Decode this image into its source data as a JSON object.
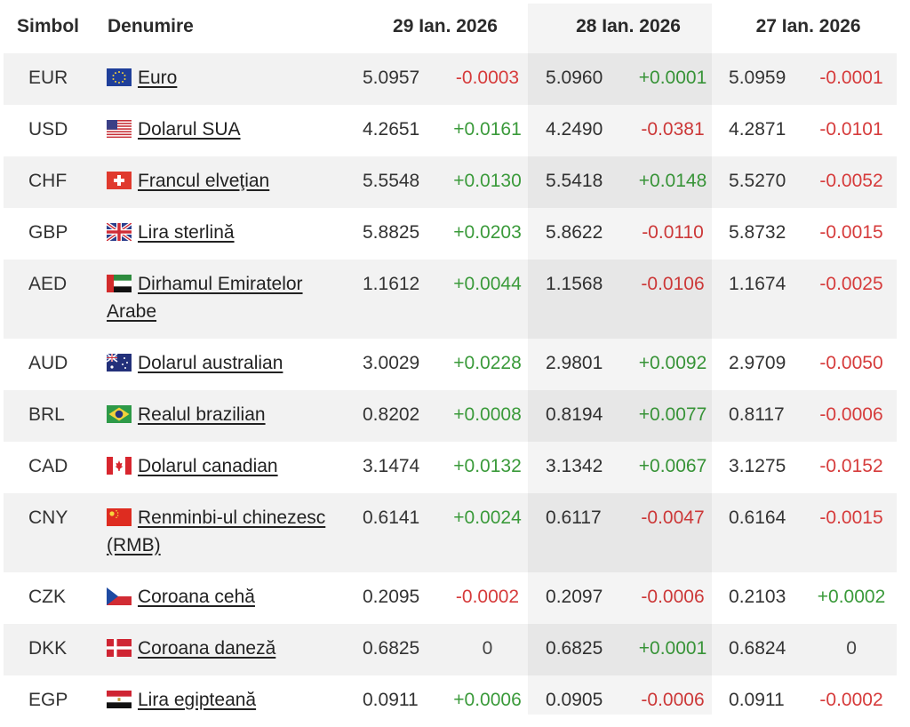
{
  "headers": {
    "symbol": "Simbol",
    "name": "Denumire",
    "dates": [
      "29 Ian. 2026",
      "28 Ian. 2026",
      "27 Ian. 2026"
    ]
  },
  "rows": [
    {
      "symbol": "EUR",
      "name": "Euro",
      "flag": "eu-flag-icon",
      "cells": [
        [
          "5.0957",
          "-0.0003"
        ],
        [
          "5.0960",
          "+0.0001"
        ],
        [
          "5.0959",
          "-0.0001"
        ]
      ]
    },
    {
      "symbol": "USD",
      "name": "Dolarul SUA",
      "flag": "us-flag-icon",
      "cells": [
        [
          "4.2651",
          "+0.0161"
        ],
        [
          "4.2490",
          "-0.0381"
        ],
        [
          "4.2871",
          "-0.0101"
        ]
      ]
    },
    {
      "symbol": "CHF",
      "name": "Francul elveţian",
      "flag": "ch-flag-icon",
      "cells": [
        [
          "5.5548",
          "+0.0130"
        ],
        [
          "5.5418",
          "+0.0148"
        ],
        [
          "5.5270",
          "-0.0052"
        ]
      ]
    },
    {
      "symbol": "GBP",
      "name": "Lira sterlină",
      "flag": "gb-flag-icon",
      "cells": [
        [
          "5.8825",
          "+0.0203"
        ],
        [
          "5.8622",
          "-0.0110"
        ],
        [
          "5.8732",
          "-0.0015"
        ]
      ]
    },
    {
      "symbol": "AED",
      "name": "Dirhamul Emiratelor Arabe",
      "flag": "ae-flag-icon",
      "cells": [
        [
          "1.1612",
          "+0.0044"
        ],
        [
          "1.1568",
          "-0.0106"
        ],
        [
          "1.1674",
          "-0.0025"
        ]
      ]
    },
    {
      "symbol": "AUD",
      "name": "Dolarul australian",
      "flag": "au-flag-icon",
      "cells": [
        [
          "3.0029",
          "+0.0228"
        ],
        [
          "2.9801",
          "+0.0092"
        ],
        [
          "2.9709",
          "-0.0050"
        ]
      ]
    },
    {
      "symbol": "BRL",
      "name": "Realul brazilian",
      "flag": "br-flag-icon",
      "cells": [
        [
          "0.8202",
          "+0.0008"
        ],
        [
          "0.8194",
          "+0.0077"
        ],
        [
          "0.8117",
          "-0.0006"
        ]
      ]
    },
    {
      "symbol": "CAD",
      "name": "Dolarul canadian",
      "flag": "ca-flag-icon",
      "cells": [
        [
          "3.1474",
          "+0.0132"
        ],
        [
          "3.1342",
          "+0.0067"
        ],
        [
          "3.1275",
          "-0.0152"
        ]
      ]
    },
    {
      "symbol": "CNY",
      "name": "Renminbi-ul chinezesc (RMB)",
      "flag": "cn-flag-icon",
      "cells": [
        [
          "0.6141",
          "+0.0024"
        ],
        [
          "0.6117",
          "-0.0047"
        ],
        [
          "0.6164",
          "-0.0015"
        ]
      ]
    },
    {
      "symbol": "CZK",
      "name": "Coroana cehă",
      "flag": "cz-flag-icon",
      "cells": [
        [
          "0.2095",
          "-0.0002"
        ],
        [
          "0.2097",
          "-0.0006"
        ],
        [
          "0.2103",
          "+0.0002"
        ]
      ]
    },
    {
      "symbol": "DKK",
      "name": "Coroana daneză",
      "flag": "dk-flag-icon",
      "cells": [
        [
          "0.6825",
          "0"
        ],
        [
          "0.6825",
          "+0.0001"
        ],
        [
          "0.6824",
          "0"
        ]
      ]
    },
    {
      "symbol": "EGP",
      "name": "Lira egipteană",
      "flag": "eg-flag-icon",
      "cells": [
        [
          "0.0911",
          "+0.0006"
        ],
        [
          "0.0905",
          "-0.0006"
        ],
        [
          "0.0911",
          "-0.0002"
        ]
      ]
    }
  ],
  "colors": {
    "positive": "#3a9a3a",
    "negative": "#d63b3b",
    "row_shade": "#f2f2f2"
  }
}
